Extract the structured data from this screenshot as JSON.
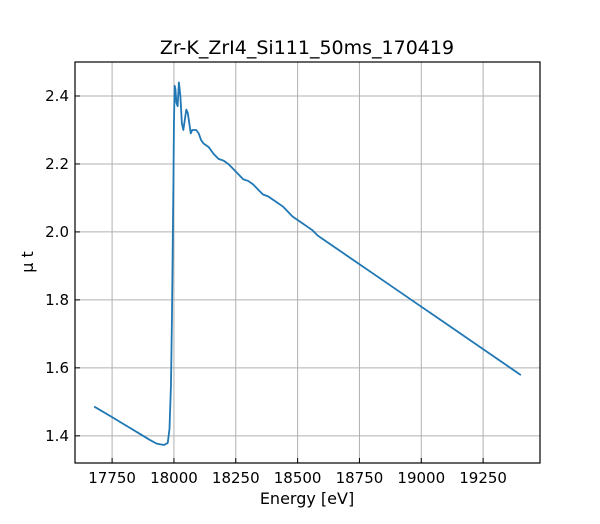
{
  "chart_data": {
    "type": "line",
    "title": "Zr-K_ZrI4_Si111_50ms_170419",
    "xlabel": "Energy [eV]",
    "ylabel": "μ t",
    "xlim": [
      17600,
      19480
    ],
    "ylim": [
      1.32,
      2.5
    ],
    "xticks": [
      17750,
      18000,
      18250,
      18500,
      18750,
      19000,
      19250
    ],
    "yticks": [
      1.4,
      1.6,
      1.8,
      2.0,
      2.2,
      2.4
    ],
    "grid": true,
    "series_color": "#1f77b4",
    "series": [
      {
        "x": [
          17680,
          17750,
          17800,
          17850,
          17900,
          17930,
          17960,
          17975,
          17982,
          17988,
          17992,
          17995,
          17998,
          18000,
          18003,
          18006,
          18010,
          18015,
          18020,
          18026,
          18032,
          18038,
          18044,
          18050,
          18056,
          18062,
          18068,
          18074,
          18082,
          18090,
          18100,
          18110,
          18120,
          18130,
          18140,
          18160,
          18180,
          18200,
          18220,
          18240,
          18260,
          18280,
          18300,
          18320,
          18340,
          18360,
          18380,
          18400,
          18420,
          18440,
          18460,
          18480,
          18500,
          18520,
          18540,
          18560,
          18580,
          18600,
          18650,
          18700,
          18750,
          18800,
          18850,
          18900,
          18950,
          19000,
          19050,
          19100,
          19150,
          19200,
          19250,
          19300,
          19350,
          19400
        ],
        "y": [
          1.485,
          1.455,
          1.433,
          1.411,
          1.389,
          1.377,
          1.373,
          1.379,
          1.42,
          1.55,
          1.75,
          1.95,
          2.15,
          2.32,
          2.43,
          2.42,
          2.38,
          2.37,
          2.44,
          2.4,
          2.32,
          2.3,
          2.33,
          2.36,
          2.35,
          2.32,
          2.29,
          2.3,
          2.3,
          2.3,
          2.29,
          2.27,
          2.26,
          2.255,
          2.25,
          2.23,
          2.215,
          2.21,
          2.2,
          2.185,
          2.17,
          2.155,
          2.15,
          2.14,
          2.125,
          2.11,
          2.105,
          2.095,
          2.085,
          2.075,
          2.06,
          2.045,
          2.035,
          2.025,
          2.015,
          2.005,
          1.99,
          1.98,
          1.955,
          1.93,
          1.905,
          1.88,
          1.855,
          1.83,
          1.805,
          1.78,
          1.755,
          1.73,
          1.705,
          1.68,
          1.655,
          1.63,
          1.605,
          1.58
        ]
      }
    ]
  }
}
